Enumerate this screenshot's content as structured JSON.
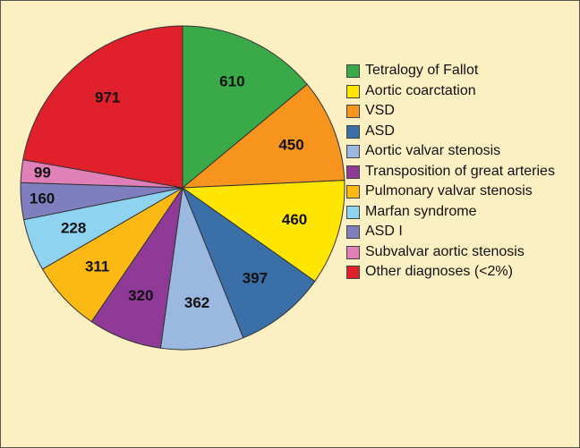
{
  "chart_data": {
    "type": "pie",
    "categories": [
      "Tetralogy of Fallot",
      "VSD",
      "Aortic coarctation",
      "ASD",
      "Aortic valvar stenosis",
      "Transposition of great arteries",
      "Pulmonary valvar stenosis",
      "Marfan syndrome",
      "ASD I",
      "Subvalvar aortic stenosis",
      "Other diagnoses (<2%)"
    ],
    "values": [
      610,
      450,
      460,
      397,
      362,
      320,
      311,
      228,
      160,
      99,
      971
    ],
    "colors": [
      "#3aaa48",
      "#f7941d",
      "#ffe600",
      "#3a6fa8",
      "#9ab8e0",
      "#8e3a96",
      "#fdb913",
      "#8ed3f0",
      "#7f7fbf",
      "#e07fb8",
      "#e0202a"
    ],
    "legend": "right"
  }
}
